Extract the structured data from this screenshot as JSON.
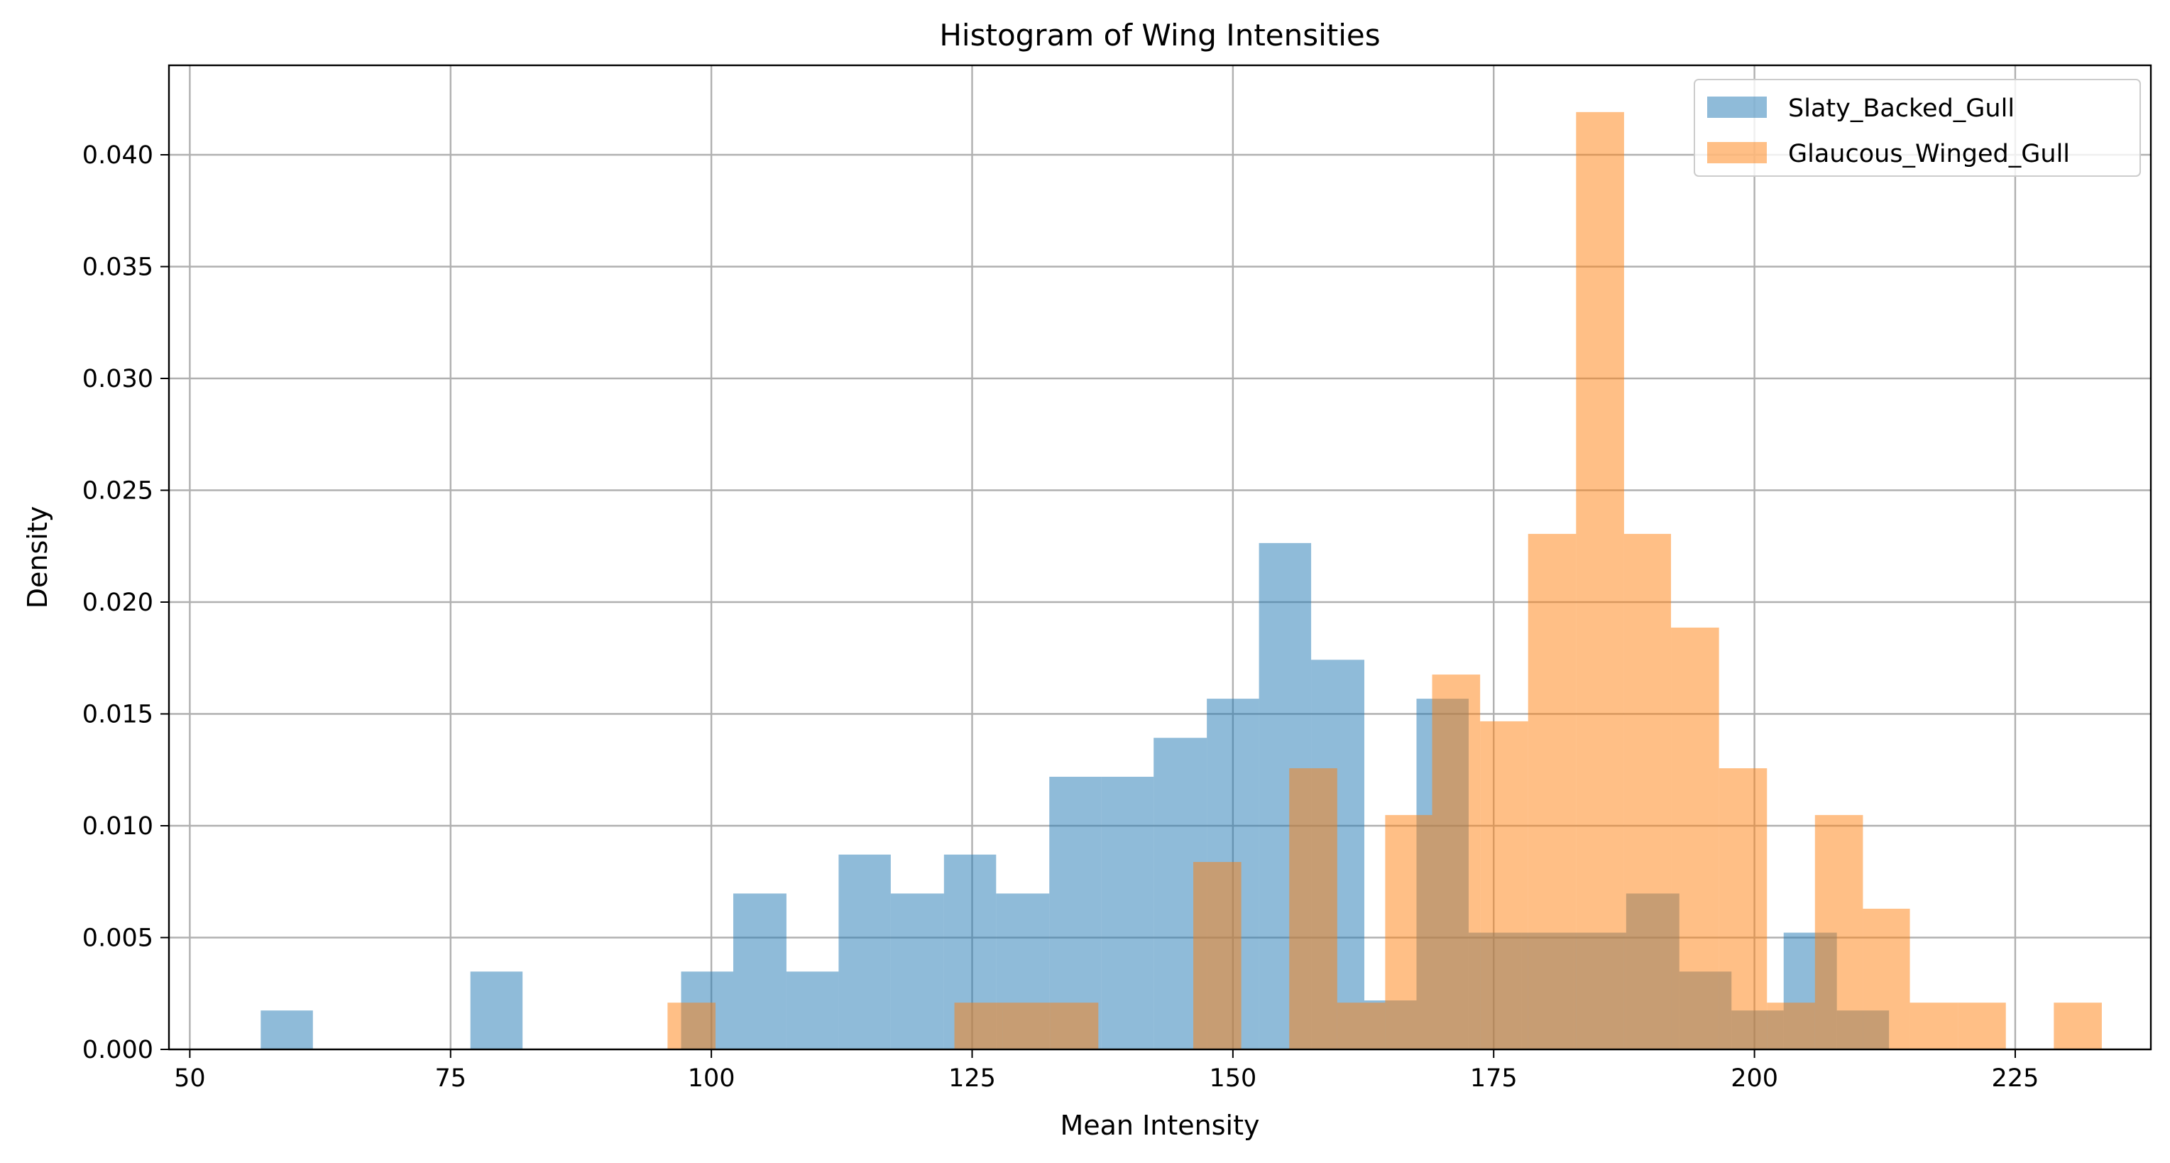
{
  "chart_data": {
    "type": "bar",
    "title": "Histogram of Wing Intensities",
    "xlabel": "Mean Intensity",
    "ylabel": "Density",
    "xlim": [
      48,
      238
    ],
    "ylim": [
      0,
      0.044
    ],
    "xticks": [
      50,
      75,
      100,
      125,
      150,
      175,
      200,
      225
    ],
    "yticks": [
      0.0,
      0.005,
      0.01,
      0.015,
      0.02,
      0.025,
      0.03,
      0.035,
      0.04
    ],
    "ytick_labels": [
      "0.000",
      "0.005",
      "0.010",
      "0.015",
      "0.020",
      "0.025",
      "0.030",
      "0.035",
      "0.040"
    ],
    "grid": true,
    "legend_position": "top-right",
    "series": [
      {
        "name": "Slaty_Backed_Gull",
        "color": "#1f77b4",
        "alpha": 0.5,
        "bins": [
          {
            "x0": 56.8,
            "x1": 61.8,
            "density": 0.00174
          },
          {
            "x0": 76.9,
            "x1": 81.9,
            "density": 0.00348
          },
          {
            "x0": 97.1,
            "x1": 102.1,
            "density": 0.00348
          },
          {
            "x0": 102.1,
            "x1": 107.2,
            "density": 0.00697
          },
          {
            "x0": 107.2,
            "x1": 112.2,
            "density": 0.00348
          },
          {
            "x0": 112.2,
            "x1": 117.2,
            "density": 0.00871
          },
          {
            "x0": 117.2,
            "x1": 122.3,
            "density": 0.00697
          },
          {
            "x0": 122.3,
            "x1": 127.3,
            "density": 0.00871
          },
          {
            "x0": 127.3,
            "x1": 132.4,
            "density": 0.00697
          },
          {
            "x0": 132.4,
            "x1": 137.4,
            "density": 0.01219
          },
          {
            "x0": 137.4,
            "x1": 142.4,
            "density": 0.01219
          },
          {
            "x0": 142.4,
            "x1": 147.5,
            "density": 0.01393
          },
          {
            "x0": 147.5,
            "x1": 152.5,
            "density": 0.01568
          },
          {
            "x0": 152.5,
            "x1": 157.5,
            "density": 0.02264
          },
          {
            "x0": 157.5,
            "x1": 162.6,
            "density": 0.01742
          },
          {
            "x0": 162.6,
            "x1": 167.6,
            "density": 0.00219
          },
          {
            "x0": 167.6,
            "x1": 172.6,
            "density": 0.01568
          },
          {
            "x0": 172.6,
            "x1": 177.7,
            "density": 0.00522
          },
          {
            "x0": 177.7,
            "x1": 182.7,
            "density": 0.00522
          },
          {
            "x0": 182.7,
            "x1": 187.7,
            "density": 0.00522
          },
          {
            "x0": 187.7,
            "x1": 192.8,
            "density": 0.00697
          },
          {
            "x0": 192.8,
            "x1": 197.8,
            "density": 0.00348
          },
          {
            "x0": 197.8,
            "x1": 202.8,
            "density": 0.00174
          },
          {
            "x0": 202.8,
            "x1": 207.9,
            "density": 0.00522
          },
          {
            "x0": 207.9,
            "x1": 212.9,
            "density": 0.00174
          }
        ]
      },
      {
        "name": "Glaucous_Winged_Gull",
        "color": "#ff7f0e",
        "alpha": 0.5,
        "bins": [
          {
            "x0": 95.8,
            "x1": 100.4,
            "density": 0.00209
          },
          {
            "x0": 123.3,
            "x1": 127.9,
            "density": 0.00209
          },
          {
            "x0": 127.9,
            "x1": 132.5,
            "density": 0.00209
          },
          {
            "x0": 132.5,
            "x1": 137.1,
            "density": 0.00209
          },
          {
            "x0": 146.2,
            "x1": 150.8,
            "density": 0.00838
          },
          {
            "x0": 155.4,
            "x1": 160.0,
            "density": 0.01257
          },
          {
            "x0": 160.0,
            "x1": 164.6,
            "density": 0.00209
          },
          {
            "x0": 164.6,
            "x1": 169.1,
            "density": 0.01048
          },
          {
            "x0": 169.1,
            "x1": 173.7,
            "density": 0.01676
          },
          {
            "x0": 173.7,
            "x1": 178.3,
            "density": 0.01467
          },
          {
            "x0": 178.3,
            "x1": 182.9,
            "density": 0.02305
          },
          {
            "x0": 182.9,
            "x1": 187.5,
            "density": 0.04191
          },
          {
            "x0": 187.5,
            "x1": 192.0,
            "density": 0.02305
          },
          {
            "x0": 192.0,
            "x1": 196.6,
            "density": 0.01886
          },
          {
            "x0": 196.6,
            "x1": 201.2,
            "density": 0.01257
          },
          {
            "x0": 201.2,
            "x1": 205.8,
            "density": 0.00209
          },
          {
            "x0": 205.8,
            "x1": 210.4,
            "density": 0.01048
          },
          {
            "x0": 210.4,
            "x1": 214.9,
            "density": 0.00629
          },
          {
            "x0": 214.9,
            "x1": 219.5,
            "density": 0.00209
          },
          {
            "x0": 219.5,
            "x1": 224.1,
            "density": 0.00209
          },
          {
            "x0": 228.7,
            "x1": 233.3,
            "density": 0.00209
          }
        ]
      }
    ]
  }
}
